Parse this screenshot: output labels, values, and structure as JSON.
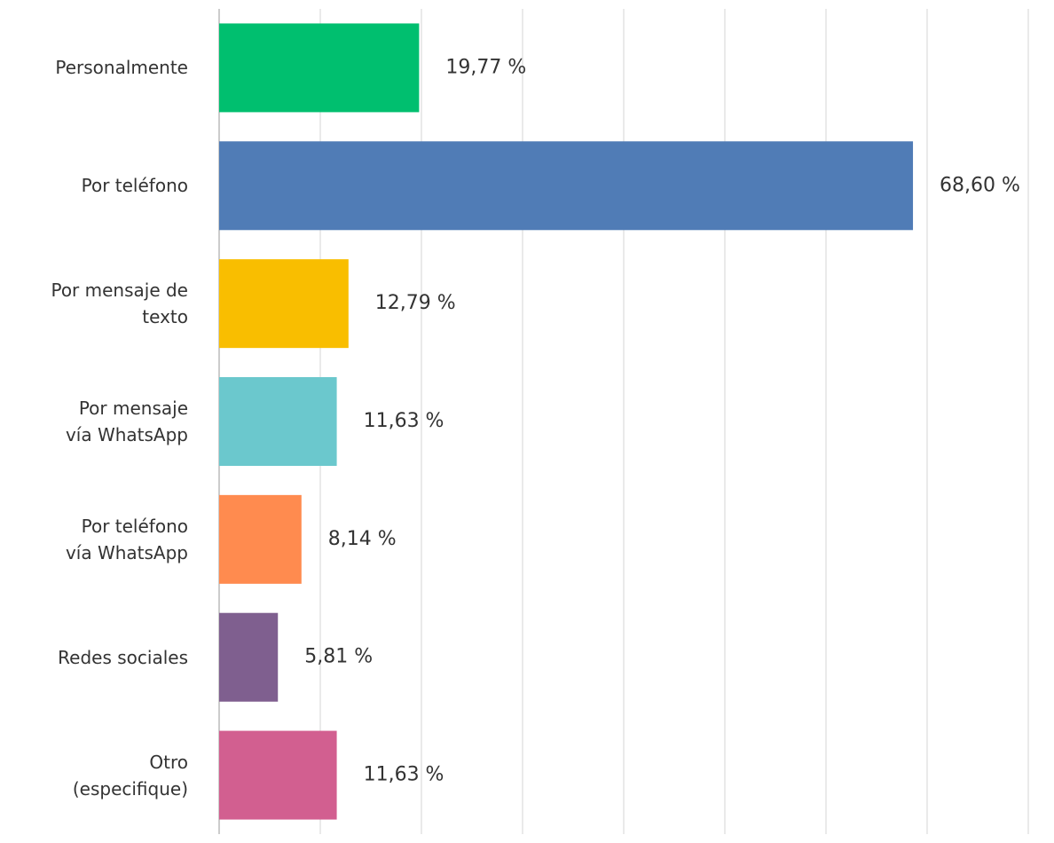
{
  "chart_data": {
    "type": "bar",
    "orientation": "horizontal",
    "categories": [
      "Personalmente",
      "Por teléfono",
      "Por mensaje de\ntexto",
      "Por mensaje\nvía WhatsApp",
      "Por teléfono\nvía WhatsApp",
      "Redes sociales",
      "Otro\n(especifique)"
    ],
    "values": [
      19.77,
      68.6,
      12.79,
      11.63,
      8.14,
      5.81,
      11.63
    ],
    "value_labels": [
      "19,77 %",
      "68,60 %",
      "12,79 %",
      "11,63 %",
      "8,14 %",
      "5,81 %",
      "11,63 %"
    ],
    "colors": [
      "#00bf6f",
      "#507cb6",
      "#f9be00",
      "#6bc8cd",
      "#ff8b4f",
      "#7f5f8f",
      "#d25f90"
    ],
    "xlim": [
      0,
      80
    ],
    "xticks": [
      0,
      10,
      20,
      30,
      40,
      50,
      60,
      70,
      80
    ],
    "grid": true
  }
}
